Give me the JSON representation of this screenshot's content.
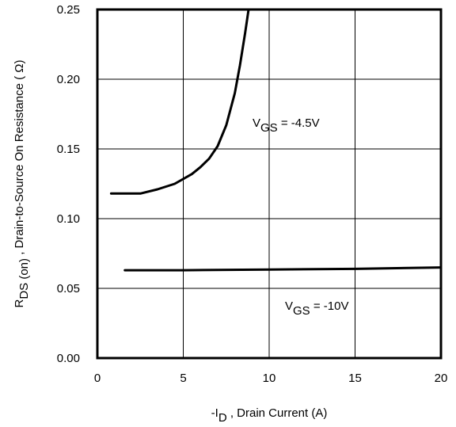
{
  "chart_data": {
    "type": "line",
    "title": "",
    "xlabel": {
      "prefix": "-I",
      "subscript": "D",
      "suffix": " , Drain Current (A)"
    },
    "ylabel": {
      "prefix": "R",
      "subscript": "DS (on)",
      "suffix": " , Drain-to-Source On Resistance ( Ω)"
    },
    "xlim": [
      0,
      20
    ],
    "ylim": [
      0,
      0.25
    ],
    "xticks": [
      0,
      5,
      10,
      15,
      20
    ],
    "yticks": [
      0.0,
      0.05,
      0.1,
      0.15,
      0.2,
      0.25
    ],
    "xtick_labels": [
      "0",
      "5",
      "10",
      "15",
      "20"
    ],
    "ytick_labels": [
      "0.00",
      "0.05",
      "0.10",
      "0.15",
      "0.20",
      "0.25"
    ],
    "grid": true,
    "series": [
      {
        "label": {
          "prefix": "V",
          "subscript": "GS",
          "suffix": " = -4.5V"
        },
        "x": [
          0.8,
          1.5,
          2.5,
          3.5,
          4.5,
          5.5,
          6.0,
          6.5,
          7.0,
          7.5,
          8.0,
          8.3,
          8.6,
          8.8
        ],
        "y": [
          0.118,
          0.118,
          0.118,
          0.121,
          0.125,
          0.132,
          0.137,
          0.143,
          0.152,
          0.167,
          0.19,
          0.21,
          0.233,
          0.25
        ]
      },
      {
        "label": {
          "prefix": "V",
          "subscript": "GS",
          "suffix": " = -10V"
        },
        "x": [
          1.6,
          5,
          10,
          15,
          20
        ],
        "y": [
          0.063,
          0.063,
          0.0635,
          0.064,
          0.065
        ]
      }
    ]
  }
}
